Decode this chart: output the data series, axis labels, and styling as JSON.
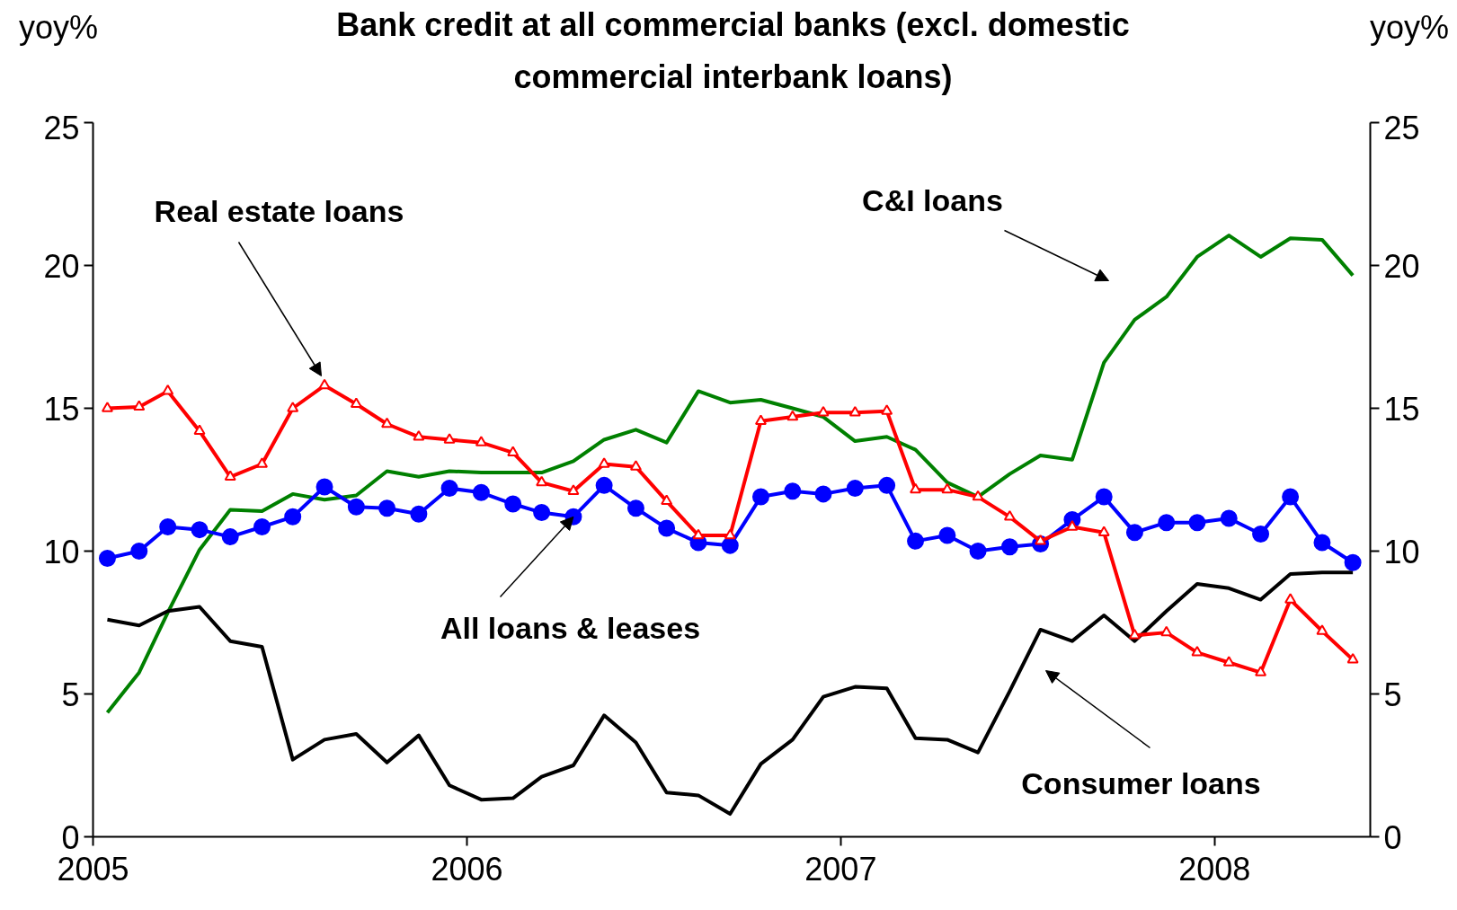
{
  "chart_data": {
    "type": "line",
    "title": "Bank credit at all commercial banks (excl. domestic commercial interbank loans)",
    "ylabel": "yoy%",
    "y2label": "yoy%",
    "x": [
      "2005-01-15",
      "2005-02-15",
      "2005-03-15",
      "2005-04-15",
      "2005-05-15",
      "2005-06-15",
      "2005-07-15",
      "2005-08-15",
      "2005-09-15",
      "2005-10-15",
      "2005-11-15",
      "2005-12-15",
      "2006-01-15",
      "2006-02-15",
      "2006-03-15",
      "2006-04-15",
      "2006-05-15",
      "2006-06-15",
      "2006-07-15",
      "2006-08-15",
      "2006-09-15",
      "2006-10-15",
      "2006-11-15",
      "2006-12-15",
      "2007-01-15",
      "2007-02-15",
      "2007-03-15",
      "2007-04-15",
      "2007-05-15",
      "2007-06-15",
      "2007-07-15",
      "2007-08-15",
      "2007-09-15",
      "2007-10-15",
      "2007-11-15",
      "2007-12-15",
      "2008-01-15",
      "2008-02-15",
      "2008-03-15",
      "2008-04-15",
      "2008-05-15"
    ],
    "series": [
      {
        "color": "#008000",
        "marker": "none",
        "values": [
          4.35,
          5.75,
          7.85,
          10.05,
          11.45,
          11.4,
          12.0,
          11.8,
          11.95,
          12.8,
          12.6,
          12.8,
          12.75,
          12.75,
          12.75,
          13.15,
          13.9,
          14.25,
          13.8,
          15.6,
          15.2,
          15.3,
          15.0,
          14.7,
          13.85,
          14.0,
          13.55,
          12.4,
          11.9,
          12.7,
          13.35,
          13.2,
          16.6,
          18.1,
          18.9,
          20.3,
          21.05,
          20.3,
          20.95,
          20.9,
          19.65
        ]
      },
      {
        "color": "#000000",
        "marker": "none",
        "values": [
          7.6,
          7.4,
          7.9,
          8.05,
          6.85,
          6.65,
          2.7,
          3.4,
          3.6,
          2.6,
          3.55,
          1.8,
          1.3,
          1.35,
          2.1,
          2.5,
          4.25,
          3.3,
          1.55,
          1.45,
          0.8,
          2.55,
          3.4,
          4.9,
          5.25,
          5.2,
          3.45,
          3.4,
          2.95,
          5.1,
          7.25,
          6.85,
          7.75,
          6.85,
          7.9,
          8.85,
          8.7,
          8.3,
          9.2,
          9.25,
          9.25
        ]
      },
      {
        "color": "#0000ff",
        "marker": "circle",
        "values": [
          9.75,
          10.0,
          10.85,
          10.75,
          10.5,
          10.85,
          11.2,
          12.25,
          11.55,
          11.5,
          11.3,
          12.2,
          12.05,
          11.65,
          11.35,
          11.2,
          12.3,
          11.5,
          10.8,
          10.3,
          10.2,
          11.9,
          12.1,
          12.0,
          12.2,
          12.3,
          10.35,
          10.55,
          10.0,
          10.15,
          10.25,
          11.1,
          11.9,
          10.65,
          11.0,
          11.0,
          11.15,
          10.6,
          11.9,
          10.3,
          9.6
        ]
      },
      {
        "color": "#ff0000",
        "marker": "triangle",
        "values": [
          15.0,
          15.05,
          15.6,
          14.2,
          12.6,
          13.05,
          15.0,
          15.8,
          15.15,
          14.45,
          14.0,
          13.9,
          13.8,
          13.45,
          12.4,
          12.1,
          13.05,
          12.95,
          11.75,
          10.55,
          10.55,
          14.55,
          14.7,
          14.85,
          14.85,
          14.9,
          12.15,
          12.15,
          11.9,
          11.2,
          10.35,
          10.85,
          10.65,
          7.05,
          7.15,
          6.45,
          6.1,
          5.75,
          8.3,
          7.2,
          6.2
        ]
      }
    ],
    "annotations": [
      "Real estate loans",
      "C&I loans",
      {
        "text": "All loans & leases",
        "x": "2006-04-15",
        "y": 11.2
      },
      "Consumer loans"
    ],
    "xlim": [
      "2005-01-01",
      "2008-06-01"
    ],
    "xticks": [
      {
        "value": "2005-01-01",
        "label": "2005"
      },
      {
        "value": "2006-01-01",
        "label": "2006"
      },
      {
        "value": "2007-01-01",
        "label": "2007"
      },
      {
        "value": "2008-01-01",
        "label": "2008"
      }
    ],
    "ylim": [
      0,
      25
    ],
    "yticks": [
      0,
      5,
      10,
      15,
      20,
      25
    ],
    "y2lim": [
      0,
      25
    ],
    "y2ticks": [
      0,
      5,
      10,
      15,
      20,
      25
    ],
    "grid": false
  }
}
